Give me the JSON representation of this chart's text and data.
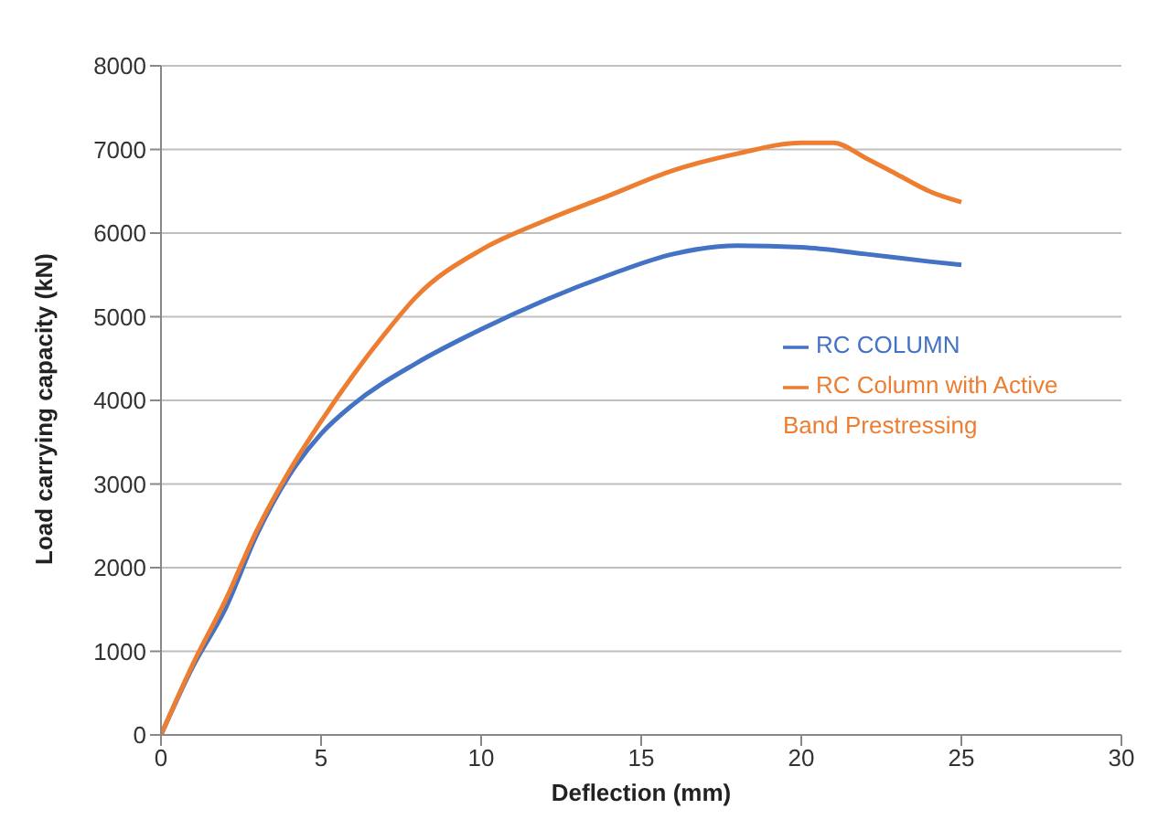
{
  "chart_data": {
    "type": "line",
    "xlabel": "Deflection (mm)",
    "ylabel": "Load carrying capacity (kN)",
    "xlim": [
      0,
      30
    ],
    "xticks": [
      0,
      5,
      10,
      15,
      20,
      25,
      30
    ],
    "ylim": [
      0,
      8000
    ],
    "yticks": [
      0,
      1000,
      2000,
      3000,
      4000,
      5000,
      6000,
      7000,
      8000
    ],
    "grid": "y",
    "legend": "right",
    "marker": "none",
    "line_style": "solid",
    "series": [
      {
        "name": "RC COLUMN",
        "color": "#4472c4",
        "x": [
          0,
          1,
          2,
          3,
          4,
          5,
          6,
          8,
          10,
          12,
          14,
          16,
          18,
          20,
          22,
          24,
          25
        ],
        "values": [
          0,
          820,
          1500,
          2400,
          3100,
          3600,
          3950,
          4450,
          4850,
          5200,
          5500,
          5750,
          5850,
          5830,
          5750,
          5660,
          5620
        ]
      },
      {
        "name": "RC Column with Active Band Prestressing",
        "color": "#ed7d31",
        "x": [
          0,
          1,
          2,
          3,
          4,
          5,
          6,
          7,
          8,
          10,
          12,
          14,
          16,
          18,
          20,
          21,
          22,
          23,
          24,
          25
        ],
        "values": [
          0,
          850,
          1600,
          2450,
          3150,
          3750,
          4300,
          4800,
          5250,
          5800,
          6150,
          6450,
          6750,
          6950,
          7080,
          7080,
          6900,
          6700,
          6500,
          6370
        ]
      }
    ]
  }
}
